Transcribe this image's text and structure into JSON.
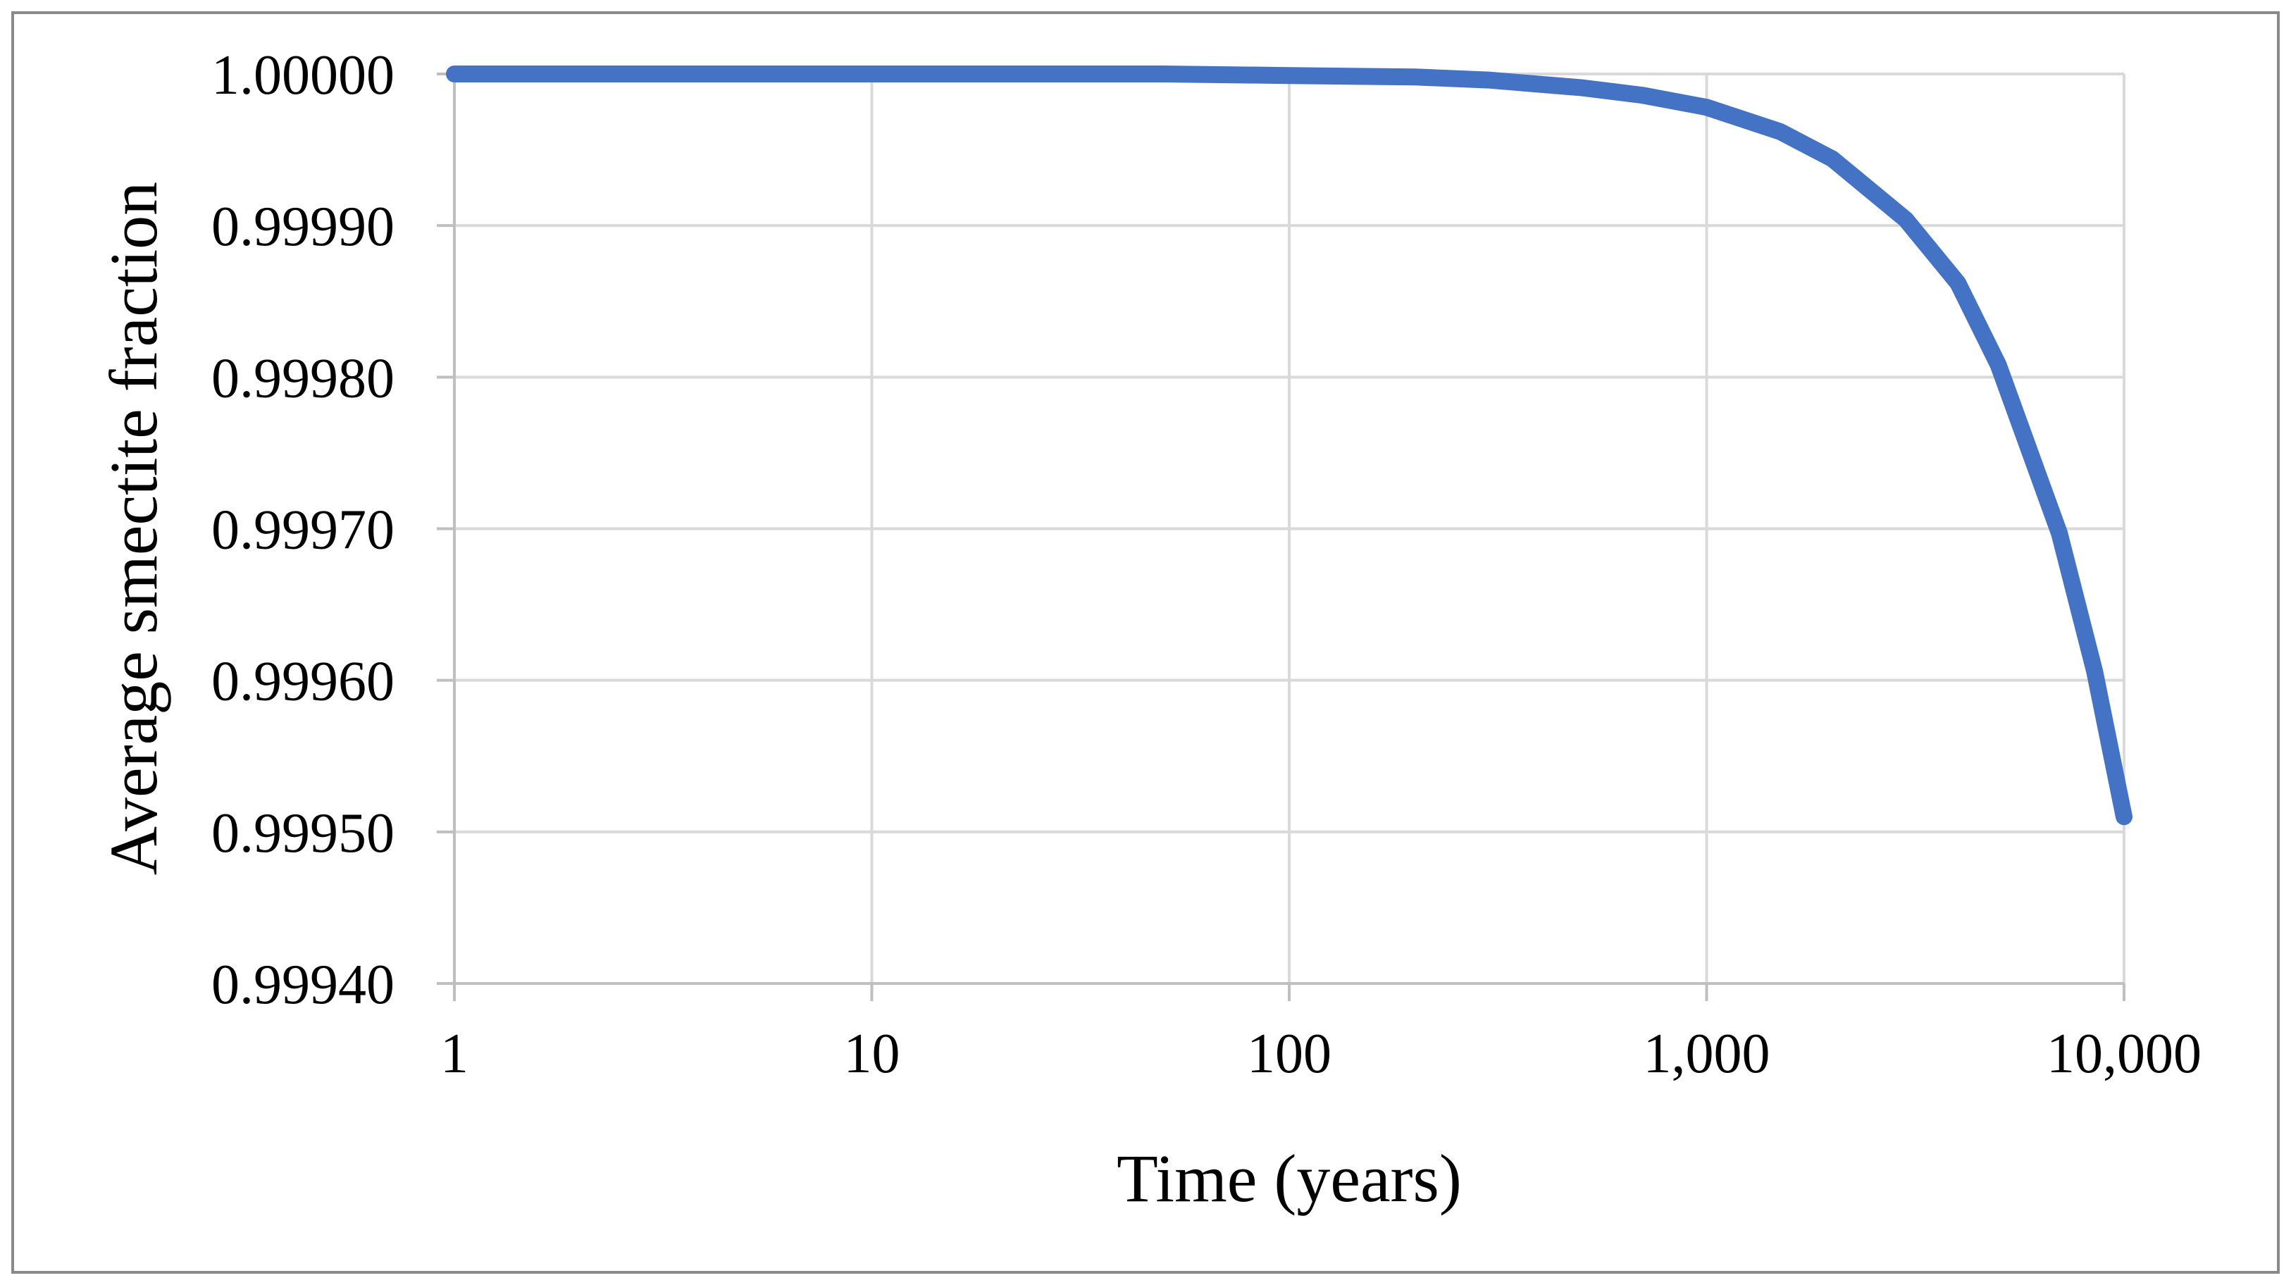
{
  "figure": {
    "background": "#FFFFFF",
    "border_color": "#898989",
    "axis_color": "#BFBFBF",
    "gridline_color": "#D9D9D9",
    "text_color": "#000000"
  },
  "chart_data": {
    "type": "line",
    "title": "",
    "xlabel": "Time (years)",
    "ylabel": "Average smectite fraction",
    "x_scale": "log",
    "xlim": [
      1,
      10000
    ],
    "ylim": [
      0.9994,
      1.0
    ],
    "grid": true,
    "legend_position": "none",
    "x_ticks": [
      {
        "value": 1,
        "label": "1"
      },
      {
        "value": 10,
        "label": "10"
      },
      {
        "value": 100,
        "label": "100"
      },
      {
        "value": 1000,
        "label": "1,000"
      },
      {
        "value": 10000,
        "label": "10,000"
      }
    ],
    "y_ticks": [
      {
        "value": 1.0,
        "label": "1.00000"
      },
      {
        "value": 0.9999,
        "label": "0.99990"
      },
      {
        "value": 0.9998,
        "label": "0.99980"
      },
      {
        "value": 0.9997,
        "label": "0.99970"
      },
      {
        "value": 0.9996,
        "label": "0.99960"
      },
      {
        "value": 0.9995,
        "label": "0.99950"
      },
      {
        "value": 0.9994,
        "label": "0.99940"
      }
    ],
    "series": [
      {
        "name": "Average smectite fraction",
        "color": "#4472C4",
        "points": [
          [
            1,
            1.0
          ],
          [
            2,
            1.0
          ],
          [
            5,
            1.0
          ],
          [
            10,
            1.0
          ],
          [
            20,
            1.0
          ],
          [
            50,
            1.0
          ],
          [
            100,
            0.999999
          ],
          [
            200,
            0.999998
          ],
          [
            300,
            0.999996
          ],
          [
            500,
            0.999991
          ],
          [
            700,
            0.999986
          ],
          [
            1000,
            0.999978
          ],
          [
            1500,
            0.999962
          ],
          [
            2000,
            0.999944
          ],
          [
            3000,
            0.999904
          ],
          [
            4000,
            0.999862
          ],
          [
            5000,
            0.999808
          ],
          [
            7000,
            0.999697
          ],
          [
            8500,
            0.999606
          ],
          [
            10000,
            0.99951
          ]
        ]
      }
    ]
  }
}
